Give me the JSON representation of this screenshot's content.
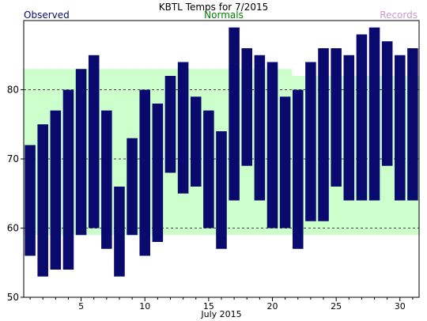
{
  "chart_data": {
    "type": "bar",
    "title": "KBTL Temps for 7/2015",
    "xlabel": "July 2015",
    "ylabel": "",
    "legend": {
      "observed": "Observed",
      "normals": "Normals",
      "records": "Records"
    },
    "colors": {
      "observed": "#0a0a6e",
      "normals_fill": "#ccffcc",
      "normals_text": "#008000",
      "records_text": "#cc99cc",
      "grid": "#444444"
    },
    "xlim": [
      0.5,
      31.5
    ],
    "ylim": [
      50,
      90
    ],
    "x_ticks": [
      5,
      10,
      15,
      20,
      25,
      30
    ],
    "y_ticks": [
      50,
      60,
      70,
      80
    ],
    "grid": "horizontal dashed at y tick labels",
    "x": [
      1,
      2,
      3,
      4,
      5,
      6,
      7,
      8,
      9,
      10,
      11,
      12,
      13,
      14,
      15,
      16,
      17,
      18,
      19,
      20,
      21,
      22,
      23,
      24,
      25,
      26,
      27,
      28,
      29,
      30,
      31
    ],
    "series": [
      {
        "name": "Observed",
        "low": [
          56,
          53,
          54,
          54,
          59,
          60,
          57,
          53,
          59,
          56,
          58,
          68,
          65,
          66,
          60,
          57,
          64,
          69,
          64,
          60,
          60,
          57,
          61,
          61,
          66,
          64,
          64,
          64,
          69,
          64,
          64
        ],
        "high": [
          72,
          75,
          77,
          80,
          83,
          85,
          77,
          66,
          73,
          80,
          78,
          82,
          84,
          79,
          77,
          74,
          89,
          86,
          85,
          84,
          79,
          80,
          84,
          86,
          86,
          85,
          88,
          89,
          87,
          85,
          86
        ]
      },
      {
        "name": "Normals",
        "low": [
          59,
          59,
          59,
          59,
          59,
          59,
          59,
          59,
          59,
          59,
          59,
          59,
          59,
          59,
          59,
          59,
          59,
          59,
          59,
          59,
          59,
          59,
          59,
          59,
          59,
          59,
          59,
          59,
          59,
          59,
          59
        ],
        "high": [
          83,
          83,
          83,
          83,
          83,
          83,
          83,
          83,
          83,
          83,
          83,
          83,
          83,
          83,
          83,
          83,
          83,
          83,
          83,
          83,
          83,
          82,
          82,
          82,
          82,
          82,
          82,
          82,
          82,
          82,
          82
        ]
      }
    ]
  }
}
